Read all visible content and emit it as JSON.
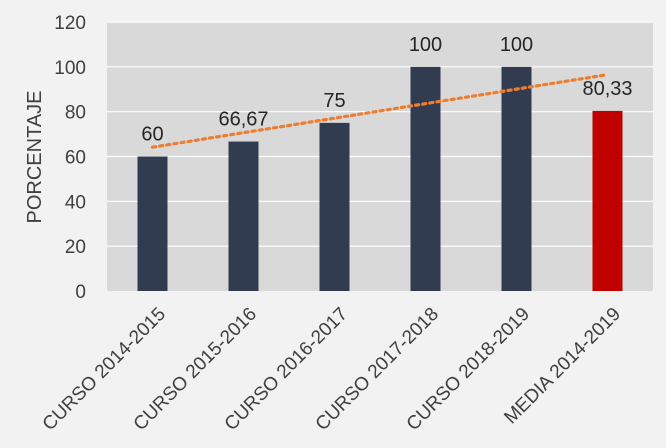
{
  "chart_data": {
    "type": "bar",
    "categories": [
      "CURSO 2014-2015",
      "CURSO 2015-2016",
      "CURSO 2016-2017",
      "CURSO 2017-2018",
      "CURSO 2018-2019",
      "MEDIA 2014-2019"
    ],
    "values": [
      60,
      66.67,
      75,
      100,
      100,
      80.33
    ],
    "data_labels": [
      "60",
      "66,67",
      "75",
      "100",
      "100",
      "80,33"
    ],
    "ylabel": "PORCENTAJE",
    "xlabel": "",
    "title": "",
    "ylim": [
      0,
      120
    ],
    "yticks": [
      0,
      20,
      40,
      60,
      80,
      100,
      120
    ],
    "grid": true,
    "trendline": {
      "type": "linear",
      "style": "dotted",
      "color": "#ed7d31",
      "fit_over_indices": [
        0,
        1,
        2,
        3,
        4,
        5
      ]
    },
    "colors": {
      "bar": "#323c50",
      "highlight_bar": "#c00000",
      "highlight_index": 5,
      "plot_bg": "#d9d9d9",
      "gridline": "#ffffff",
      "page_bg": "#f2f2f2"
    }
  }
}
